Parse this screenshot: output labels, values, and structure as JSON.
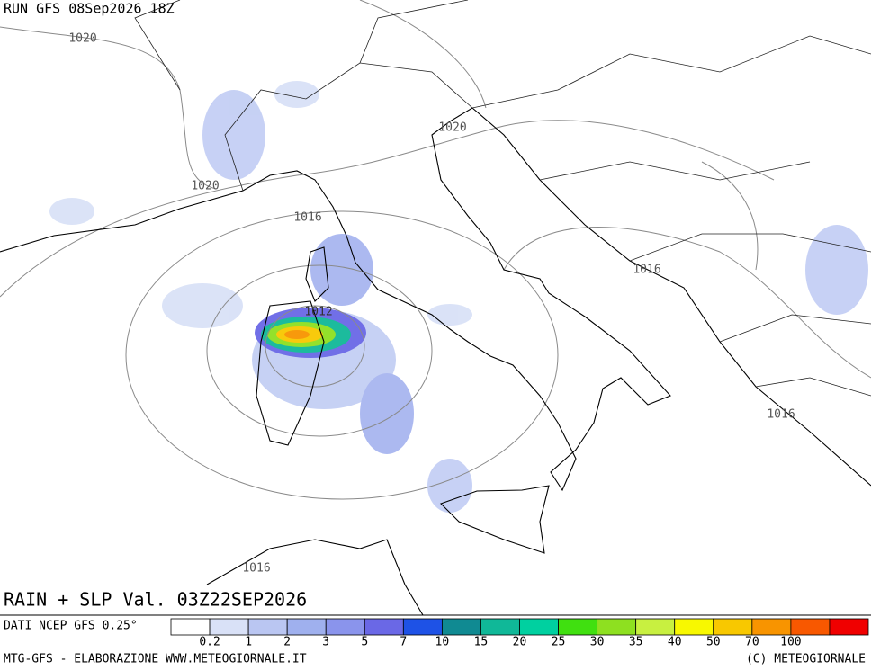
{
  "header": {
    "run": "RUN GFS 08Sep2026 18Z"
  },
  "isobar_labels": [
    "1020",
    "1020",
    "1020",
    "1016",
    "1016",
    "1016",
    "1012",
    "1016"
  ],
  "footer_title": "RAIN + SLP Val. 03Z22SEP2026",
  "source": "DATI NCEP GFS 0.25°",
  "legend": {
    "colors": [
      "#ffffff",
      "#d9e1f7",
      "#bac6f2",
      "#9fb0ee",
      "#8a94ec",
      "#6a68e6",
      "#1e52e6",
      "#108a92",
      "#10b898",
      "#00d0a0",
      "#40e010",
      "#8ee020",
      "#c8f040",
      "#f8f800",
      "#f8c800",
      "#f89400",
      "#f85800",
      "#f00000"
    ],
    "values": [
      0.2,
      1,
      2,
      3,
      5,
      7,
      10,
      15,
      20,
      25,
      30,
      35,
      40,
      50,
      70,
      100
    ]
  },
  "credits": {
    "left": "MTG-GFS - ELABORAZIONE WWW.METEOGIORNALE.IT",
    "right": "(C) METEOGIORNALE"
  }
}
